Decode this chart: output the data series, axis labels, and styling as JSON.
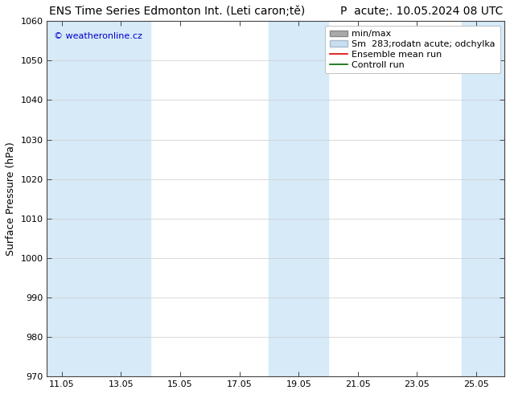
{
  "title_left": "ENS Time Series Edmonton Int. (Leti caron;tě)",
  "title_right": "P  acute;. 10.05.2024 08 UTC",
  "ylabel": "Surface Pressure (hPa)",
  "ylim": [
    970,
    1060
  ],
  "yticks": [
    970,
    980,
    990,
    1000,
    1010,
    1020,
    1030,
    1040,
    1050,
    1060
  ],
  "xlim": [
    10.55,
    26.0
  ],
  "xticks": [
    11.05,
    13.05,
    15.05,
    17.05,
    19.05,
    21.05,
    23.05,
    25.05
  ],
  "xticklabels": [
    "11.05",
    "13.05",
    "15.05",
    "17.05",
    "19.05",
    "21.05",
    "23.05",
    "25.05"
  ],
  "watermark": "© weatheronline.cz",
  "watermark_color": "#0000cc",
  "bg_color": "#ffffff",
  "plot_bg_color": "#ffffff",
  "shaded_band_color": "#d6eaf8",
  "shaded_columns": [
    {
      "xmin": 10.55,
      "xmax": 12.05
    },
    {
      "xmin": 12.05,
      "xmax": 14.05
    },
    {
      "xmin": 18.05,
      "xmax": 20.05
    },
    {
      "xmin": 24.55,
      "xmax": 26.0
    }
  ],
  "legend_labels": [
    "min/max",
    "Sm  283;rodatn acute; odchylka",
    "Ensemble mean run",
    "Controll run"
  ],
  "legend_patch1_fc": "#aaaaaa",
  "legend_patch1_ec": "#888888",
  "legend_patch2_fc": "#c8dff0",
  "legend_patch2_ec": "#aabbcc",
  "legend_line1_color": "#dd0000",
  "legend_line2_color": "#006600",
  "font_size_title": 10,
  "font_size_axis": 9,
  "font_size_ticks": 8,
  "font_size_legend": 8,
  "font_size_watermark": 8
}
